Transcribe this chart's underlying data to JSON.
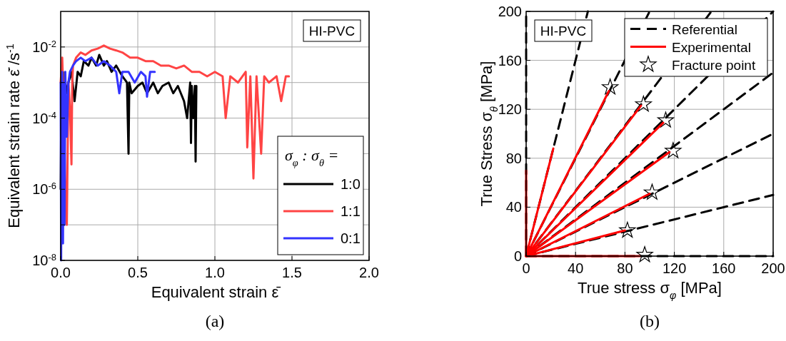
{
  "chart_data": [
    {
      "type": "line",
      "title": "(a)",
      "xlabel": "Equivalent strain ε̄",
      "ylabel": "Equivalent strain rate ε̇̄ /s$^{-1}$",
      "legend_title": "σ$_{φ}$ : σ$_{θ}$ =",
      "annotations": [
        "HI-PVC"
      ],
      "log": "y",
      "grid": true,
      "legend": "bottom right",
      "xlim": [
        0,
        2
      ],
      "xticks": [
        {
          "value": 0,
          "label": "0.0"
        },
        {
          "value": 0.5,
          "label": "0.5"
        },
        {
          "value": 1,
          "label": "1.0"
        },
        {
          "value": 1.5,
          "label": "1.5"
        },
        {
          "value": 2,
          "label": "2.0"
        }
      ],
      "ylim": [
        1e-08,
        0.1
      ],
      "yticks": [
        {
          "value": 1e-08,
          "label": "10$^{-8}$"
        },
        {
          "value": 1e-07,
          "label": null
        },
        {
          "value": 1e-06,
          "label": "10$^{-6}$"
        },
        {
          "value": 1e-05,
          "label": null
        },
        {
          "value": 0.0001,
          "label": "10$^{-4}$"
        },
        {
          "value": 0.001,
          "label": null
        },
        {
          "value": 0.01,
          "label": "10$^{-2}$"
        }
      ],
      "series": [
        {
          "name": "1:0",
          "color": "#000000",
          "x": [
            0.0,
            0.005,
            0.01,
            0.015,
            0.02,
            0.03,
            0.04,
            0.05,
            0.07,
            0.09,
            0.11,
            0.13,
            0.15,
            0.18,
            0.2,
            0.23,
            0.25,
            0.28,
            0.3,
            0.33,
            0.36,
            0.4,
            0.43,
            0.44,
            0.445,
            0.46,
            0.5,
            0.53,
            0.56,
            0.6,
            0.63,
            0.66,
            0.7,
            0.73,
            0.76,
            0.8,
            0.82,
            0.84,
            0.845,
            0.85,
            0.86,
            0.87,
            0.875,
            0.88
          ],
          "values": [
            1e-06,
            0.001,
            0.0001,
            0.002,
            3e-05,
            0.001,
            0.0005,
            0.001,
            0.002,
            0.0003,
            0.002,
            0.0015,
            0.004,
            0.003,
            0.005,
            0.003,
            0.006,
            0.003,
            0.004,
            0.002,
            0.003,
            0.0015,
            0.001,
            1e-05,
            0.001,
            0.0005,
            0.0008,
            0.001,
            0.0005,
            0.001,
            0.0005,
            0.0008,
            0.001,
            0.0005,
            0.0008,
            0.0003,
            0.0001,
            0.001,
            2e-05,
            0.0008,
            0.0001,
            0.0008,
            6e-06,
            0.0008
          ]
        },
        {
          "name": "1:1",
          "color": "#ff4444",
          "x": [
            0.0,
            0.01,
            0.02,
            0.03,
            0.04,
            0.05,
            0.06,
            0.07,
            0.075,
            0.08,
            0.1,
            0.13,
            0.16,
            0.2,
            0.24,
            0.28,
            0.32,
            0.36,
            0.4,
            0.45,
            0.5,
            0.55,
            0.6,
            0.65,
            0.7,
            0.75,
            0.8,
            0.85,
            0.9,
            0.95,
            1.0,
            1.05,
            1.07,
            1.1,
            1.15,
            1.2,
            1.21,
            1.23,
            1.25,
            1.27,
            1.3,
            1.32,
            1.35,
            1.4,
            1.43,
            1.46,
            1.48
          ],
          "values": [
            0.001,
            0.005,
            0.0002,
            1e-06,
            1e-07,
            0.001,
            0.0002,
            5e-06,
            0.001,
            0.003,
            0.005,
            0.007,
            0.006,
            0.008,
            0.009,
            0.011,
            0.009,
            0.008,
            0.007,
            0.005,
            0.005,
            0.004,
            0.004,
            0.003,
            0.003,
            0.0025,
            0.003,
            0.002,
            0.002,
            0.0015,
            0.002,
            0.0015,
            0.0001,
            0.0015,
            0.001,
            0.002,
            1.5e-05,
            0.0015,
            2e-06,
            0.0015,
            1e-05,
            0.0015,
            0.001,
            0.0015,
            0.0003,
            0.0015,
            0.0015
          ]
        },
        {
          "name": "0:1",
          "color": "#3333ff",
          "x": [
            0.0,
            0.003,
            0.006,
            0.01,
            0.015,
            0.02,
            0.025,
            0.03,
            0.04,
            0.05,
            0.06,
            0.08,
            0.1,
            0.13,
            0.16,
            0.2,
            0.24,
            0.28,
            0.32,
            0.36,
            0.38,
            0.4,
            0.44,
            0.48,
            0.52,
            0.55,
            0.56,
            0.58,
            0.61
          ],
          "values": [
            0.001,
            1e-08,
            0.0001,
            0.002,
            3e-08,
            0.001,
            1e-07,
            0.002,
            3e-05,
            0.001,
            0.002,
            0.003,
            0.004,
            0.005,
            0.004,
            0.005,
            0.003,
            0.004,
            0.003,
            0.002,
            0.0005,
            0.002,
            0.002,
            0.001,
            0.002,
            0.0015,
            0.0004,
            0.002,
            0.002
          ]
        }
      ]
    },
    {
      "type": "line",
      "title": "(b)",
      "xlabel": "True stress σ$_{φ}$ [MPa]",
      "ylabel": "True Stress σ$_{θ}$ [MPa]",
      "annotations": [
        "HI-PVC"
      ],
      "grid": true,
      "legend": "top right",
      "xlim": [
        0,
        200
      ],
      "xticks": [
        0,
        40,
        80,
        120,
        160,
        200
      ],
      "ylim": [
        0,
        200
      ],
      "yticks": [
        0,
        40,
        80,
        120,
        160,
        200
      ],
      "series": [
        {
          "name": "Referential",
          "color": "#000000",
          "line_style": "dashed",
          "x": [
            0,
            50
          ],
          "values": [
            0,
            200
          ]
        },
        {
          "color": "#000000",
          "line_style": "dashed",
          "x": [
            0,
            0
          ],
          "values": [
            0,
            200
          ]
        },
        {
          "color": "#000000",
          "line_style": "dashed",
          "x": [
            0,
            100
          ],
          "values": [
            0,
            200
          ]
        },
        {
          "color": "#000000",
          "line_style": "dashed",
          "x": [
            0,
            150
          ],
          "values": [
            0,
            200
          ]
        },
        {
          "color": "#000000",
          "line_style": "dashed",
          "x": [
            0,
            200
          ],
          "values": [
            0,
            200
          ]
        },
        {
          "color": "#000000",
          "line_style": "dashed",
          "x": [
            0,
            200
          ],
          "values": [
            0,
            150
          ]
        },
        {
          "color": "#000000",
          "line_style": "dashed",
          "x": [
            0,
            200
          ],
          "values": [
            0,
            100
          ]
        },
        {
          "color": "#000000",
          "line_style": "dashed",
          "x": [
            0,
            200
          ],
          "values": [
            0,
            50
          ]
        },
        {
          "color": "#000000",
          "line_style": "dashed",
          "x": [
            0,
            200
          ],
          "values": [
            0,
            0
          ]
        },
        {
          "name": "Experimental",
          "color": "#ff0000",
          "line_style": "solid",
          "x": [
            0,
            67
          ],
          "values": [
            0,
            135
          ]
        },
        {
          "color": "#ff0000",
          "line_style": "solid",
          "x": [
            0,
            0
          ],
          "values": [
            0,
            70
          ]
        },
        {
          "color": "#ff0000",
          "line_style": "solid",
          "x": [
            0,
            22
          ],
          "values": [
            0,
            88
          ]
        },
        {
          "color": "#ff0000",
          "line_style": "solid",
          "x": [
            0,
            93
          ],
          "values": [
            0,
            123
          ]
        },
        {
          "color": "#ff0000",
          "line_style": "solid",
          "x": [
            0,
            111
          ],
          "values": [
            0,
            109
          ]
        },
        {
          "color": "#ff0000",
          "line_style": "solid",
          "x": [
            0,
            116
          ],
          "values": [
            0,
            85
          ]
        },
        {
          "color": "#ff0000",
          "line_style": "solid",
          "x": [
            0,
            100
          ],
          "values": [
            0,
            51
          ]
        },
        {
          "color": "#ff0000",
          "line_style": "solid",
          "x": [
            0,
            80
          ],
          "values": [
            0,
            21
          ]
        },
        {
          "color": "#ff0000",
          "line_style": "solid",
          "x": [
            0,
            92
          ],
          "values": [
            0,
            0
          ]
        },
        {
          "name": "Fracture point",
          "type": "scatter",
          "marker": "star",
          "color": "#000000",
          "x": [
            68,
            95,
            113,
            119,
            102,
            82,
            96
          ],
          "values": [
            138,
            124,
            111,
            86,
            52,
            21,
            1
          ]
        }
      ]
    }
  ]
}
